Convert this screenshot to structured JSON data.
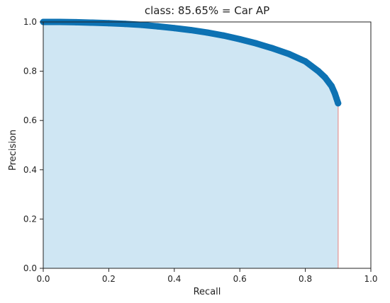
{
  "chart_data": {
    "type": "area",
    "title": "class: 85.65% = Car AP",
    "xlabel": "Recall",
    "ylabel": "Precision",
    "xlim": [
      0.0,
      1.0
    ],
    "ylim": [
      0.0,
      1.0
    ],
    "xticks": [
      "0.0",
      "0.2",
      "0.4",
      "0.6",
      "0.8",
      "1.0"
    ],
    "yticks": [
      "0.0",
      "0.2",
      "0.4",
      "0.6",
      "0.8",
      "1.0"
    ],
    "grid": false,
    "legend": "none",
    "colors": {
      "line": "#0d72b3",
      "fill": "#cfe6f3",
      "drop_line": "#e3a7a7"
    },
    "series": [
      {
        "x": [
          0.0,
          0.05,
          0.1,
          0.15,
          0.2,
          0.25,
          0.3,
          0.35,
          0.4,
          0.45,
          0.5,
          0.55,
          0.6,
          0.65,
          0.7,
          0.75,
          0.8,
          0.84,
          0.86,
          0.88,
          0.89,
          0.895,
          0.9
        ],
        "y": [
          1.0,
          1.0,
          0.999,
          0.997,
          0.995,
          0.992,
          0.988,
          0.982,
          0.975,
          0.967,
          0.957,
          0.945,
          0.93,
          0.913,
          0.893,
          0.87,
          0.84,
          0.8,
          0.775,
          0.74,
          0.71,
          0.69,
          0.67
        ]
      }
    ]
  }
}
